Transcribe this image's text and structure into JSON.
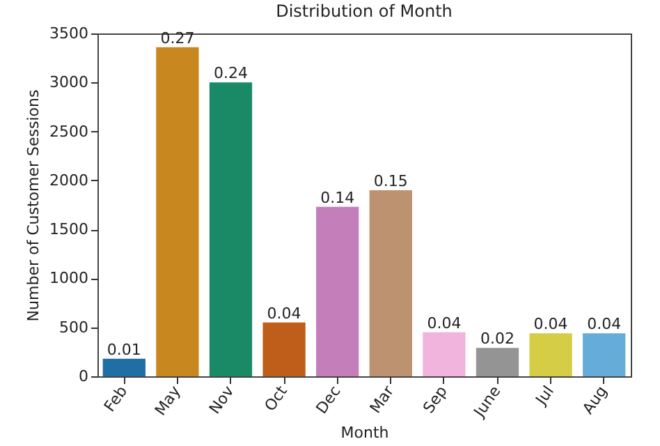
{
  "chart_data": {
    "type": "bar",
    "title": "Distribution of Month",
    "xlabel": "Month",
    "ylabel": "Number of Customer Sessions",
    "categories": [
      "Feb",
      "May",
      "Nov",
      "Oct",
      "Dec",
      "Mar",
      "Sep",
      "June",
      "Jul",
      "Aug"
    ],
    "values": [
      180,
      3360,
      3000,
      550,
      1730,
      1900,
      450,
      290,
      440,
      440
    ],
    "colors": [
      "#1f6ea4",
      "#c98720",
      "#1a8a66",
      "#bf5e1b",
      "#c47fba",
      "#bd9270",
      "#f0b4dd",
      "#949494",
      "#d5cd45",
      "#66acd9"
    ],
    "annotations": [
      {
        "text": "0.01",
        "x": "Feb",
        "y": 180
      },
      {
        "text": "0.27",
        "x": "May",
        "y": 3360
      },
      {
        "text": "0.24",
        "x": "Nov",
        "y": 3000
      },
      {
        "text": "0.04",
        "x": "Oct",
        "y": 550
      },
      {
        "text": "0.14",
        "x": "Dec",
        "y": 1730
      },
      {
        "text": "0.15",
        "x": "Mar",
        "y": 1900
      },
      {
        "text": "0.04",
        "x": "Sep",
        "y": 450
      },
      {
        "text": "0.02",
        "x": "June",
        "y": 290
      },
      {
        "text": "0.04",
        "x": "Jul",
        "y": 440
      },
      {
        "text": "0.04",
        "x": "Aug",
        "y": 440
      }
    ],
    "ylim": [
      0,
      3500
    ],
    "yticks": [
      0,
      500,
      1000,
      1500,
      2000,
      2500,
      3000,
      3500
    ],
    "grid": false
  }
}
